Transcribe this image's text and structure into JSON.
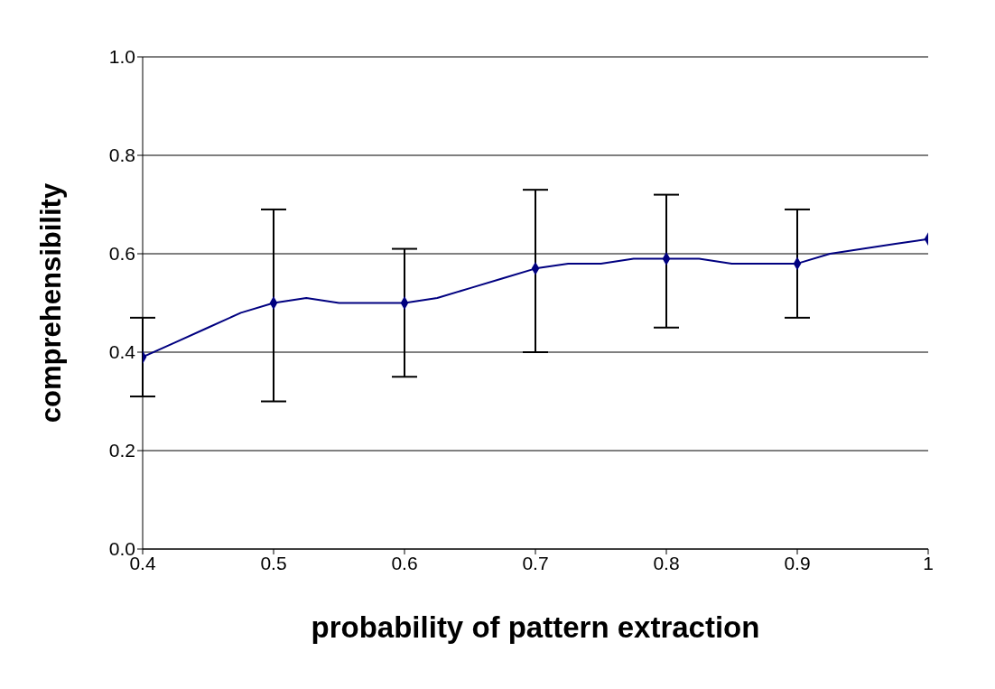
{
  "chart_data": {
    "type": "line",
    "xlabel": "probability of pattern extraction",
    "ylabel": "comprehensibility",
    "xlim": [
      0.4,
      1
    ],
    "xticks": [
      0.4,
      0.5,
      0.6,
      0.7,
      0.8,
      0.9,
      1
    ],
    "ylim": [
      0,
      1
    ],
    "yticks": [
      {
        "value": 0,
        "label": "0.0"
      },
      {
        "value": 0.2,
        "label": "0.2"
      },
      {
        "value": 0.4,
        "label": "0.4"
      },
      {
        "value": 0.6,
        "label": "0.6"
      },
      {
        "value": 0.8,
        "label": "0.8"
      },
      {
        "value": 1,
        "label": "1.0"
      }
    ],
    "grid": "y",
    "legend": false,
    "series": [
      {
        "marker": "none",
        "color": "#000080",
        "x": [
          0.4,
          0.425,
          0.45,
          0.475,
          0.5,
          0.525,
          0.55,
          0.575,
          0.6,
          0.625,
          0.65,
          0.675,
          0.7,
          0.725,
          0.75,
          0.775,
          0.8,
          0.825,
          0.85,
          0.875,
          0.9,
          0.925,
          0.95,
          0.975,
          1
        ],
        "values": [
          0.39,
          0.42,
          0.45,
          0.48,
          0.5,
          0.51,
          0.5,
          0.5,
          0.5,
          0.51,
          0.53,
          0.55,
          0.57,
          0.58,
          0.58,
          0.59,
          0.59,
          0.59,
          0.58,
          0.58,
          0.58,
          0.6,
          0.61,
          0.62,
          0.63
        ]
      },
      {
        "type": "scatter",
        "marker": "diamond",
        "color": "#000080",
        "x": [
          0.4,
          0.5,
          0.6,
          0.7,
          0.8,
          0.9,
          1
        ],
        "values": [
          0.39,
          0.5,
          0.5,
          0.57,
          0.59,
          0.58,
          0.63
        ],
        "errors": [
          [
            0.31,
            0.47
          ],
          [
            0.3,
            0.69
          ],
          [
            0.35,
            0.61
          ],
          [
            0.4,
            0.73
          ],
          [
            0.45,
            0.72
          ],
          [
            0.47,
            0.69
          ],
          null
        ]
      }
    ]
  }
}
